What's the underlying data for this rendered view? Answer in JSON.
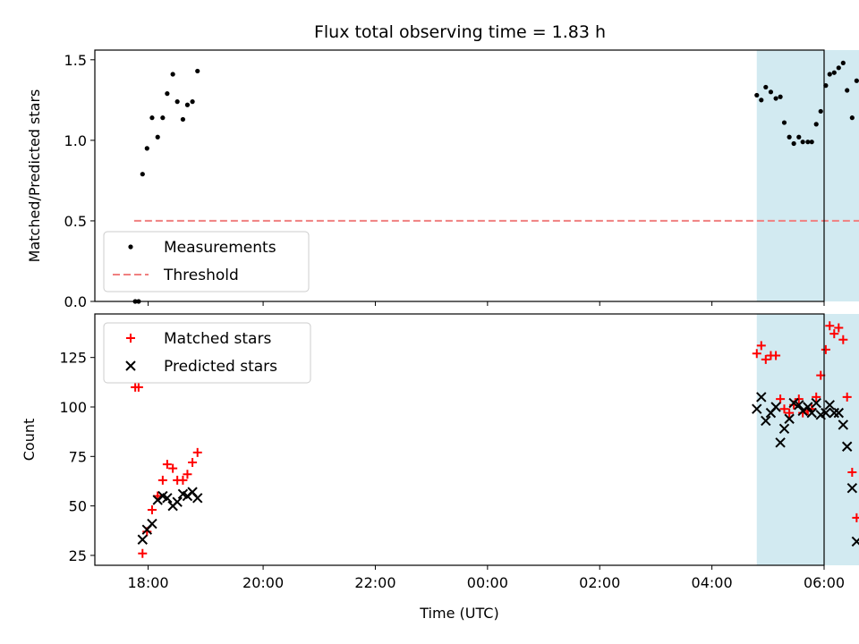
{
  "title": "Flux total observing time = 1.83 h",
  "colors": {
    "measurement": "#000000",
    "threshold": "#f08080",
    "matched": "#ff0000",
    "predicted": "#000000",
    "highlight": "#add8e6"
  },
  "chart_data": [
    {
      "type": "scatter",
      "name": "ratio-panel",
      "ylabel": "Matched/Predicted stars",
      "xlabel": "",
      "xlim": [
        -1.0,
        12.0
      ],
      "ylim": [
        0.0,
        1.56
      ],
      "yticks": [
        0.0,
        0.5,
        1.0,
        1.5
      ],
      "ytick_labels": [
        "0.0",
        "0.5",
        "1.0",
        "1.5"
      ],
      "highlight_span": [
        10.8,
        12.65
      ],
      "threshold": {
        "name": "Threshold",
        "y": 0.5,
        "x_range": [
          -0.3,
          12.65
        ]
      },
      "legend": {
        "location": "lower-left",
        "entries": [
          "Measurements",
          "Threshold"
        ]
      },
      "series": [
        {
          "name": "Measurements",
          "marker": "dot",
          "points": [
            [
              -0.28,
              0.0
            ],
            [
              -0.22,
              0.0
            ],
            [
              -0.15,
              0.79
            ],
            [
              -0.07,
              0.95
            ],
            [
              0.02,
              1.14
            ],
            [
              0.12,
              1.02
            ],
            [
              0.21,
              1.14
            ],
            [
              0.29,
              1.29
            ],
            [
              0.39,
              1.41
            ],
            [
              0.47,
              1.24
            ],
            [
              0.57,
              1.13
            ],
            [
              0.65,
              1.22
            ],
            [
              0.74,
              1.24
            ],
            [
              0.83,
              1.43
            ],
            [
              10.8,
              1.28
            ],
            [
              10.88,
              1.25
            ],
            [
              10.96,
              1.33
            ],
            [
              11.05,
              1.3
            ],
            [
              11.14,
              1.26
            ],
            [
              11.22,
              1.27
            ],
            [
              11.29,
              1.11
            ],
            [
              11.38,
              1.02
            ],
            [
              11.46,
              0.98
            ],
            [
              11.55,
              1.02
            ],
            [
              11.62,
              0.99
            ],
            [
              11.71,
              0.99
            ],
            [
              11.78,
              0.99
            ],
            [
              11.86,
              1.1
            ],
            [
              11.94,
              1.18
            ],
            [
              12.03,
              1.34
            ],
            [
              12.1,
              1.41
            ],
            [
              12.18,
              1.42
            ],
            [
              12.26,
              1.45
            ],
            [
              12.34,
              1.48
            ],
            [
              12.41,
              1.31
            ],
            [
              12.5,
              1.14
            ],
            [
              12.58,
              1.37
            ]
          ]
        }
      ]
    },
    {
      "type": "scatter",
      "name": "count-panel",
      "ylabel": "Count",
      "xlabel": "Time (UTC)",
      "xlim": [
        -1.0,
        12.0
      ],
      "ylim": [
        20,
        147
      ],
      "yticks": [
        25,
        50,
        75,
        100,
        125
      ],
      "ytick_labels": [
        "25",
        "50",
        "75",
        "100",
        "125"
      ],
      "xticks": [
        -0.05,
        2.0,
        4.0,
        6.0,
        8.0,
        10.0,
        12.0
      ],
      "xtick_labels": [
        "18:00",
        "20:00",
        "22:00",
        "00:00",
        "02:00",
        "04:00",
        "06:00"
      ],
      "highlight_span": [
        10.8,
        12.65
      ],
      "legend": {
        "location": "upper-left",
        "entries": [
          "Matched stars",
          "Predicted stars"
        ]
      },
      "series": [
        {
          "name": "Matched stars",
          "marker": "plus",
          "points": [
            [
              -0.28,
              110
            ],
            [
              -0.22,
              110
            ],
            [
              -0.15,
              26
            ],
            [
              -0.07,
              37
            ],
            [
              0.02,
              48
            ],
            [
              0.12,
              55
            ],
            [
              0.21,
              63
            ],
            [
              0.29,
              71
            ],
            [
              0.39,
              69
            ],
            [
              0.47,
              63
            ],
            [
              0.57,
              63
            ],
            [
              0.65,
              66
            ],
            [
              0.74,
              72
            ],
            [
              0.83,
              77
            ],
            [
              10.8,
              127
            ],
            [
              10.88,
              131
            ],
            [
              10.96,
              124
            ],
            [
              11.05,
              126
            ],
            [
              11.14,
              126
            ],
            [
              11.22,
              104
            ],
            [
              11.29,
              99
            ],
            [
              11.38,
              97
            ],
            [
              11.46,
              101
            ],
            [
              11.55,
              104
            ],
            [
              11.62,
              97
            ],
            [
              11.71,
              98
            ],
            [
              11.78,
              99
            ],
            [
              11.86,
              105
            ],
            [
              11.94,
              116
            ],
            [
              12.03,
              129
            ],
            [
              12.1,
              141
            ],
            [
              12.18,
              137
            ],
            [
              12.26,
              140
            ],
            [
              12.34,
              134
            ],
            [
              12.41,
              105
            ],
            [
              12.5,
              67
            ],
            [
              12.58,
              44
            ]
          ]
        },
        {
          "name": "Predicted stars",
          "marker": "x",
          "points": [
            [
              -0.15,
              33
            ],
            [
              -0.07,
              38
            ],
            [
              0.02,
              41
            ],
            [
              0.12,
              53
            ],
            [
              0.21,
              55
            ],
            [
              0.29,
              54
            ],
            [
              0.39,
              50
            ],
            [
              0.47,
              52
            ],
            [
              0.57,
              56
            ],
            [
              0.65,
              55
            ],
            [
              0.74,
              57
            ],
            [
              0.83,
              54
            ],
            [
              10.8,
              99
            ],
            [
              10.88,
              105
            ],
            [
              10.96,
              93
            ],
            [
              11.05,
              97
            ],
            [
              11.14,
              100
            ],
            [
              11.22,
              82
            ],
            [
              11.29,
              89
            ],
            [
              11.38,
              94
            ],
            [
              11.46,
              102
            ],
            [
              11.55,
              101
            ],
            [
              11.62,
              98
            ],
            [
              11.71,
              100
            ],
            [
              11.78,
              97
            ],
            [
              11.86,
              102
            ],
            [
              11.94,
              96
            ],
            [
              12.03,
              97
            ],
            [
              12.1,
              101
            ],
            [
              12.18,
              97
            ],
            [
              12.26,
              97
            ],
            [
              12.34,
              91
            ],
            [
              12.41,
              80
            ],
            [
              12.5,
              59
            ],
            [
              12.58,
              32
            ]
          ]
        }
      ]
    }
  ]
}
